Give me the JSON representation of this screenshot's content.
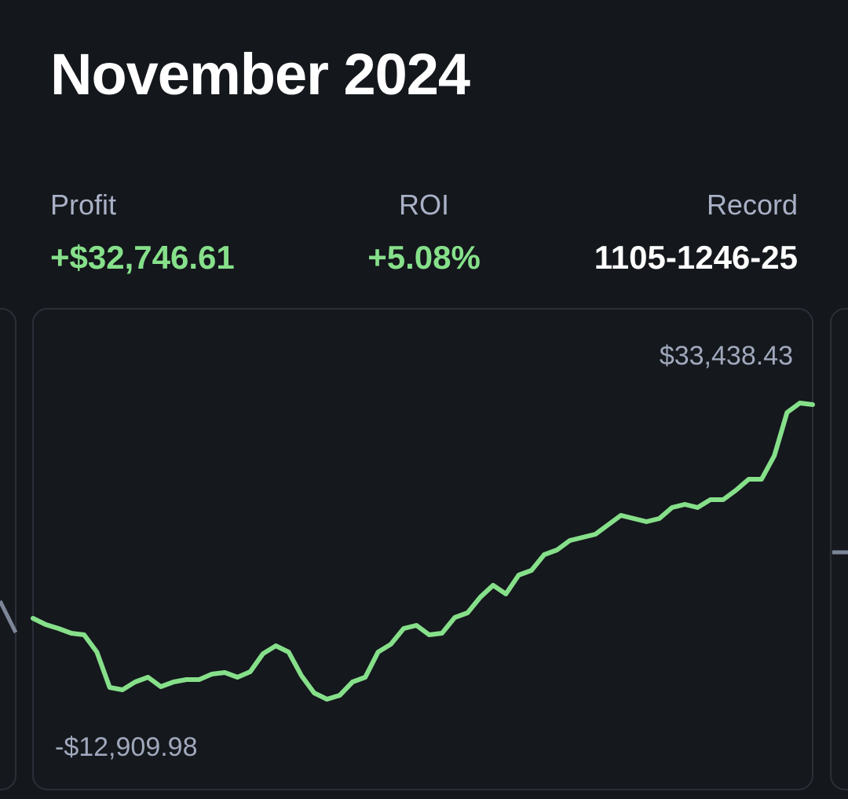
{
  "header": {
    "title": "November 2024"
  },
  "stats": [
    {
      "label": "Profit",
      "value": "+$32,746.61"
    },
    {
      "label": "ROI",
      "value": "+5.08%"
    },
    {
      "label": "Record",
      "value": "1105-1246-25"
    }
  ],
  "chart_data": {
    "type": "line",
    "color": "#86e08a",
    "values": [
      -248,
      -1230,
      -1850,
      -2580,
      -2830,
      -5530,
      -11070,
      -11430,
      -10210,
      -9470,
      -10940,
      -10210,
      -9840,
      -9840,
      -8980,
      -8730,
      -9470,
      -8610,
      -5780,
      -4550,
      -5530,
      -9220,
      -11930,
      -12909.98,
      -12300,
      -10210,
      -9470,
      -5530,
      -4300,
      -1850,
      -1350,
      -2830,
      -2580,
      -120,
      610,
      3070,
      4920,
      3560,
      6510,
      7250,
      9710,
      10450,
      11920,
      12420,
      12910,
      14380,
      15860,
      15370,
      14870,
      15370,
      17090,
      17580,
      17090,
      18320,
      18320,
      19790,
      21510,
      21510,
      25200,
      31960,
      33438.43,
      33190
    ],
    "annotations": [
      {
        "value": 33438.43,
        "label": "$33,438.43"
      },
      {
        "value": -12909.98,
        "label": "-$12,909.98"
      }
    ]
  }
}
